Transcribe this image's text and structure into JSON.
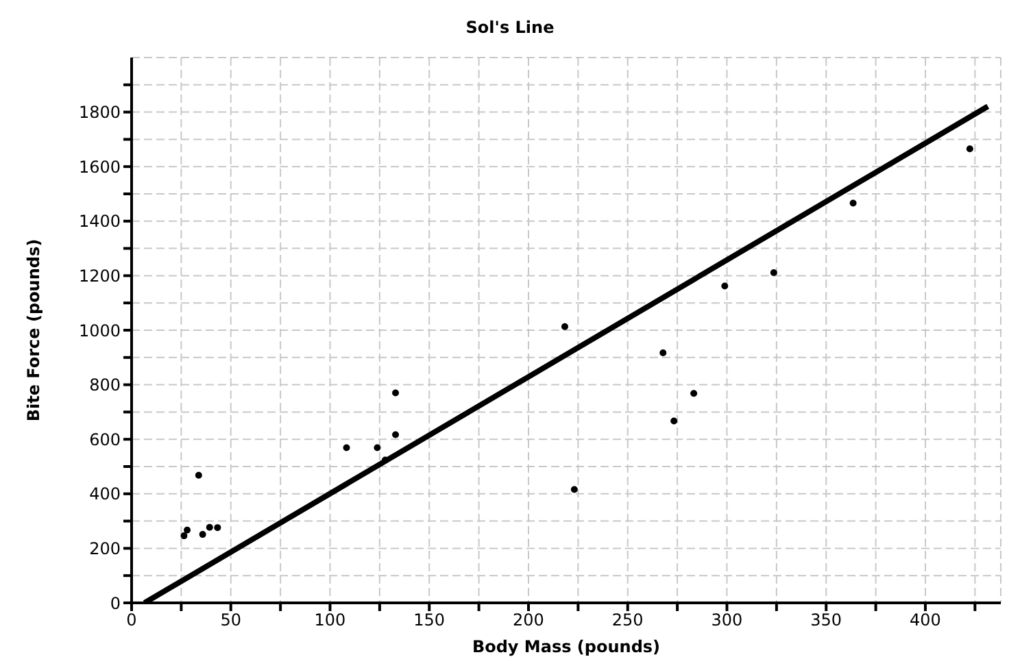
{
  "chart_data": {
    "type": "scatter",
    "title": "Sol's Line",
    "xlabel": "Body Mass (pounds)",
    "ylabel": "Bite Force (pounds)",
    "xlim": [
      0,
      438
    ],
    "ylim": [
      0,
      2000
    ],
    "xticks": [
      0,
      {
        "value": 25,
        "label": null
      },
      50,
      {
        "value": 75,
        "label": null
      },
      100,
      {
        "value": 125,
        "label": null
      },
      150,
      {
        "value": 175,
        "label": null
      },
      200,
      {
        "value": 225,
        "label": null
      },
      250,
      {
        "value": 275,
        "label": null
      },
      300,
      {
        "value": 325,
        "label": null
      },
      350,
      {
        "value": 375,
        "label": null
      },
      400,
      {
        "value": 425,
        "label": null
      }
    ],
    "yticks": [
      0,
      {
        "value": 100,
        "label": null
      },
      200,
      {
        "value": 300,
        "label": null
      },
      400,
      {
        "value": 500,
        "label": null
      },
      600,
      {
        "value": 700,
        "label": null
      },
      800,
      {
        "value": 900,
        "label": null
      },
      1000,
      {
        "value": 1100,
        "label": null
      },
      1200,
      {
        "value": 1300,
        "label": null
      },
      1400,
      {
        "value": 1500,
        "label": null
      },
      1600,
      {
        "value": 1700,
        "label": null
      },
      1800,
      {
        "value": 1900,
        "label": null
      }
    ],
    "grid": true,
    "series": [
      {
        "color": "#000000",
        "marker": "circle",
        "x": [
          26.4,
          28,
          33.8,
          35.8,
          39.3,
          43.3,
          108.3,
          123.8,
          127.8,
          133,
          133,
          218.3,
          223.1,
          267.8,
          273.3,
          283.3,
          298.9,
          323.6,
          363.6,
          422.4
        ],
        "values": [
          246,
          267,
          468,
          251,
          277,
          276,
          569,
          569,
          524,
          617,
          770,
          1013,
          416,
          917,
          667,
          768,
          1162,
          1211,
          1466,
          1665
        ]
      },
      {
        "type": "line",
        "color": "#000000",
        "line_style": "solid",
        "marker": "none",
        "x": [
          6.5,
          431.5
        ],
        "values": [
          0,
          1821
        ]
      }
    ]
  }
}
